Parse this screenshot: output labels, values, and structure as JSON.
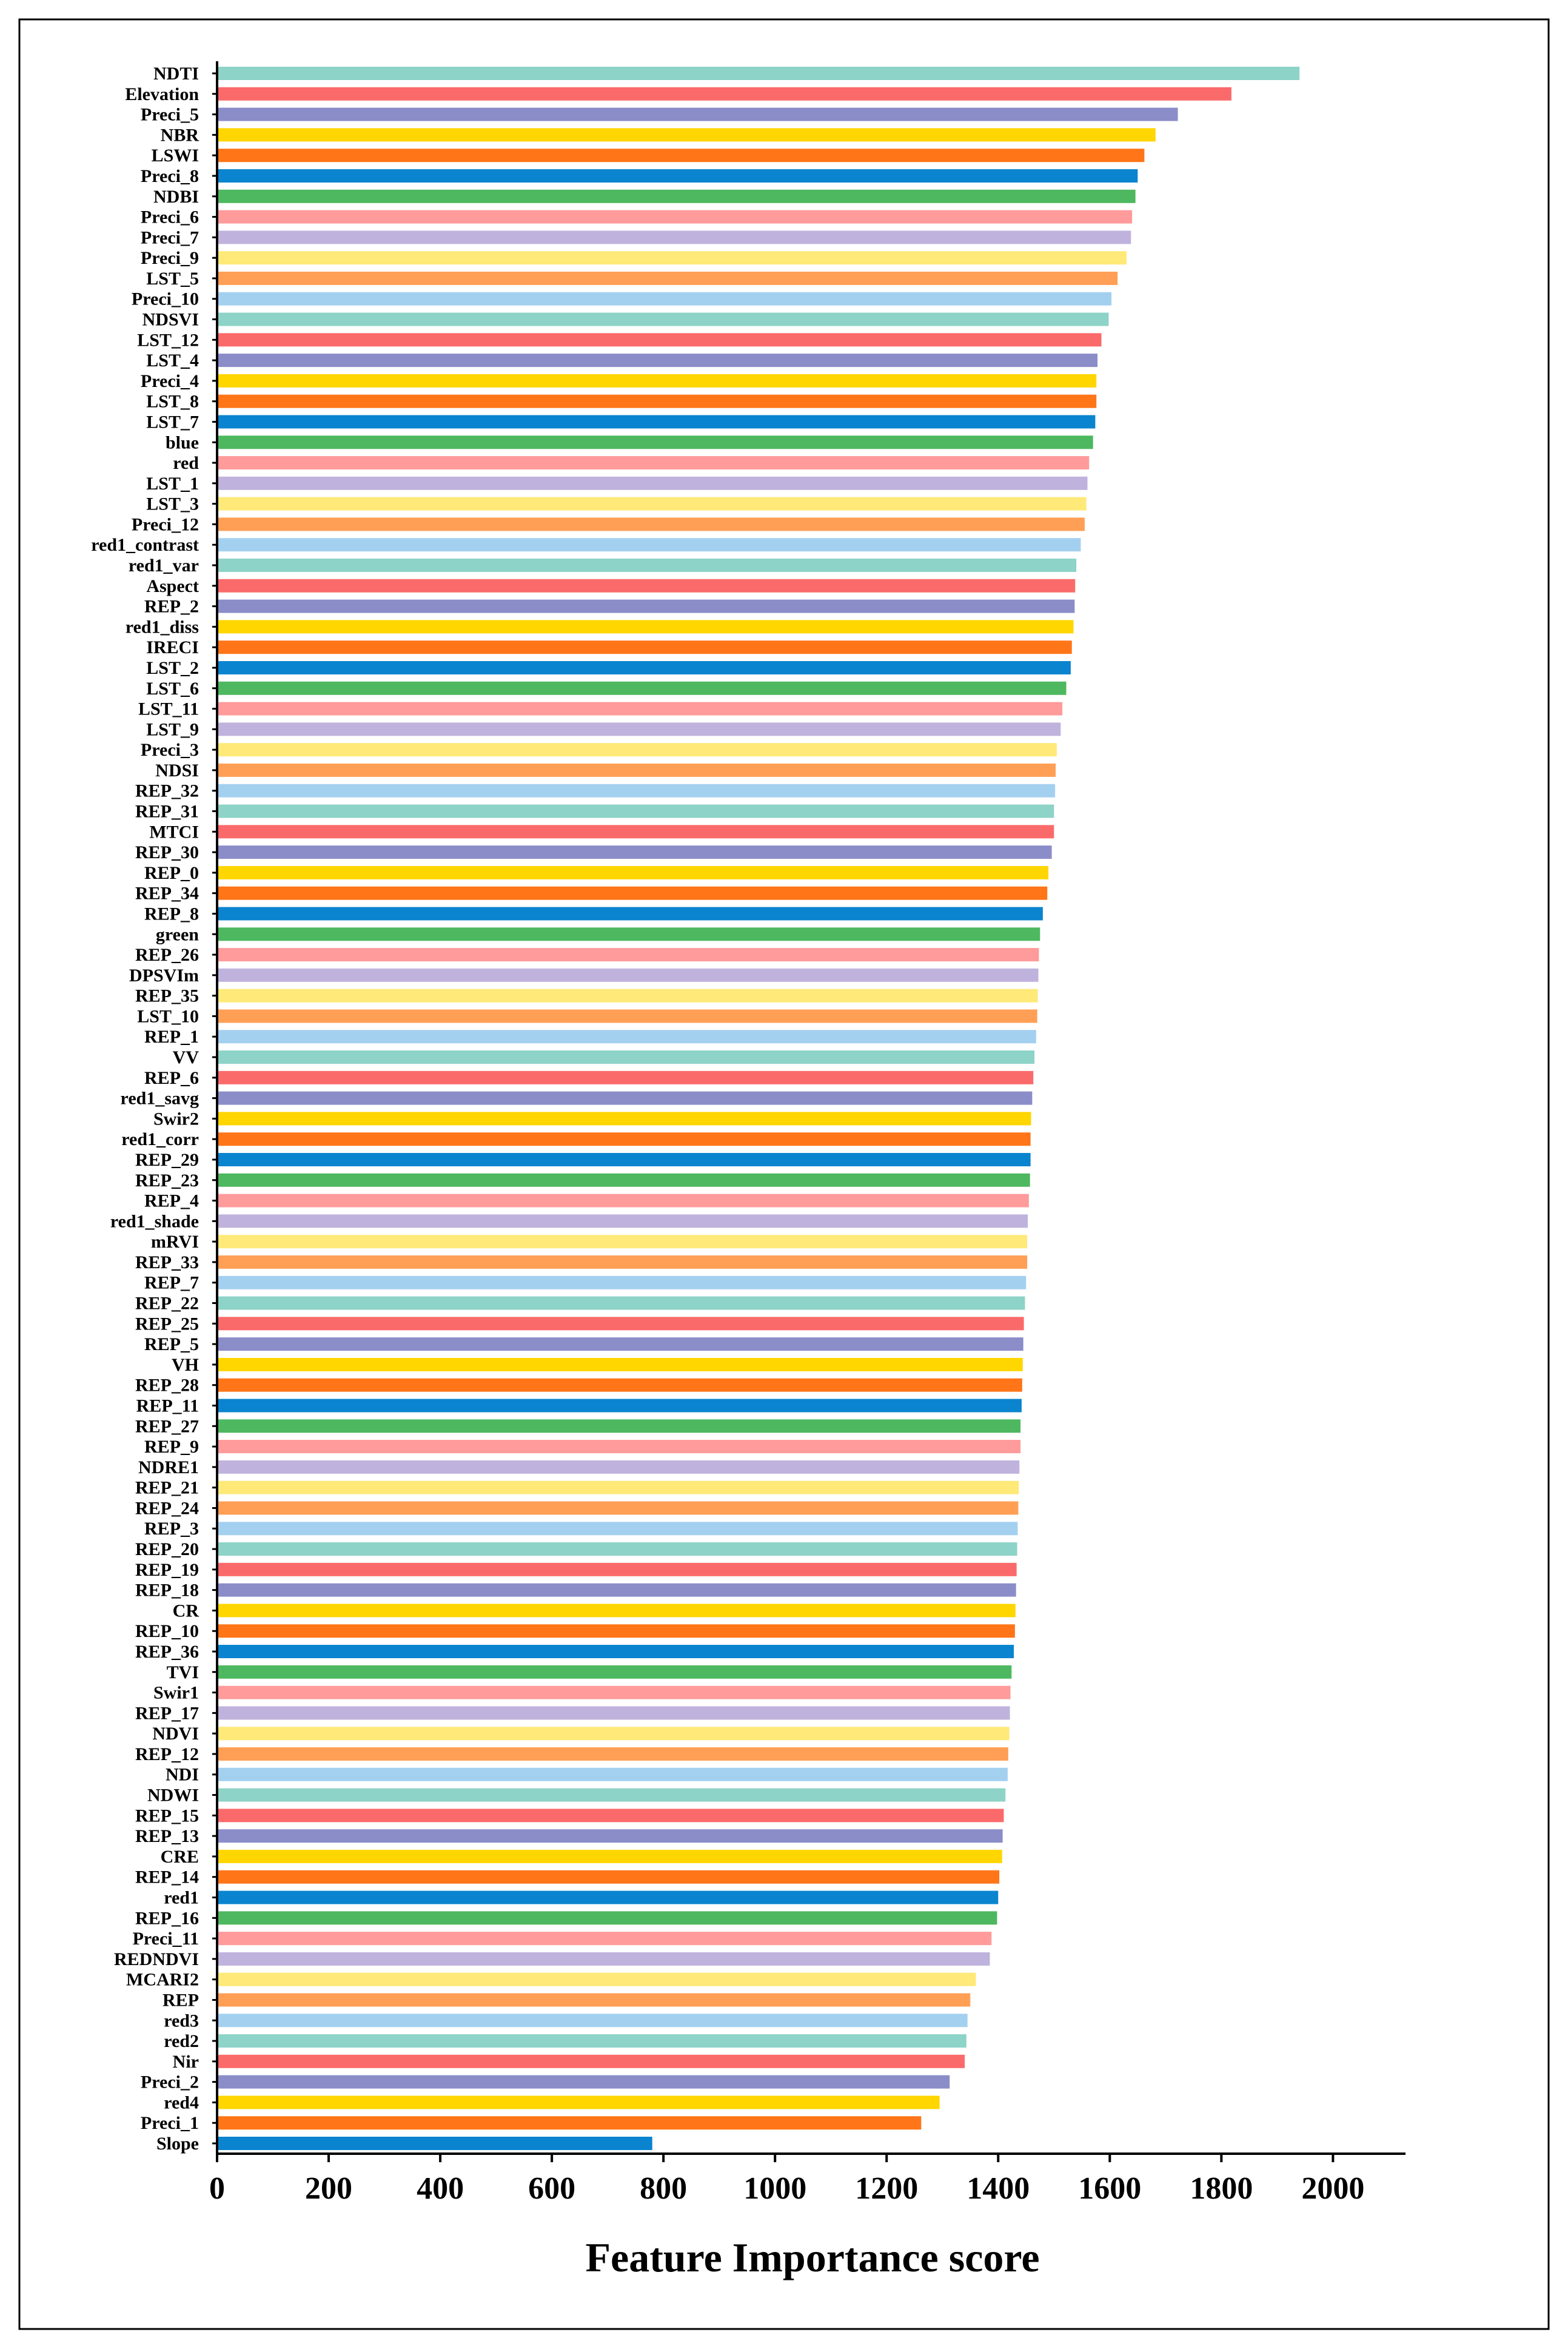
{
  "chart_data": {
    "type": "bar",
    "orientation": "horizontal",
    "xlabel": "Feature Importance score",
    "ylabel": "",
    "title": "",
    "xlim": [
      0,
      2130
    ],
    "xticks": [
      0,
      200,
      400,
      600,
      800,
      1000,
      1200,
      1400,
      1600,
      1800,
      2000
    ],
    "grid": false,
    "legend": "none",
    "palette": [
      "#8DD3C7",
      "#FB6A6A",
      "#8B8DC9",
      "#FFD600",
      "#FF7518",
      "#0A84CF",
      "#4DB85F",
      "#FF9B9B",
      "#BFB3DD",
      "#FFE978",
      "#FF9F55",
      "#A4D0F0"
    ],
    "categories": [
      "NDTI",
      "Elevation",
      "Preci_5",
      "NBR",
      "LSWI",
      "Preci_8",
      "NDBI",
      "Preci_6",
      "Preci_7",
      "Preci_9",
      "LST_5",
      "Preci_10",
      "NDSVI",
      "LST_12",
      "LST_4",
      "Preci_4",
      "LST_8",
      "LST_7",
      "blue",
      "red",
      "LST_1",
      "LST_3",
      "Preci_12",
      "red1_contrast",
      "red1_var",
      "Aspect",
      "REP_2",
      "red1_diss",
      "IRECI",
      "LST_2",
      "LST_6",
      "LST_11",
      "LST_9",
      "Preci_3",
      "NDSI",
      "REP_32",
      "REP_31",
      "MTCI",
      "REP_30",
      "REP_0",
      "REP_34",
      "REP_8",
      "green",
      "REP_26",
      "DPSVIm",
      "REP_35",
      "LST_10",
      "REP_1",
      "VV",
      "REP_6",
      "red1_savg",
      "Swir2",
      "red1_corr",
      "REP_29",
      "REP_23",
      "REP_4",
      "red1_shade",
      "mRVI",
      "REP_33",
      "REP_7",
      "REP_22",
      "REP_25",
      "REP_5",
      "VH",
      "REP_28",
      "REP_11",
      "REP_27",
      "REP_9",
      "NDRE1",
      "REP_21",
      "REP_24",
      "REP_3",
      "REP_20",
      "REP_19",
      "REP_18",
      "CR",
      "REP_10",
      "REP_36",
      "TVI",
      "Swir1",
      "REP_17",
      "NDVI",
      "REP_12",
      "NDI",
      "NDWI",
      "REP_15",
      "REP_13",
      "CRE",
      "REP_14",
      "red1",
      "REP_16",
      "Preci_11",
      "REDNDVI",
      "MCARI2",
      "REP",
      "red3",
      "red2",
      "Nir",
      "Preci_2",
      "red4",
      "Preci_1",
      "Slope"
    ],
    "values": [
      1940,
      1818,
      1722,
      1682,
      1662,
      1650,
      1646,
      1640,
      1638,
      1630,
      1614,
      1603,
      1598,
      1585,
      1578,
      1576,
      1576,
      1574,
      1570,
      1563,
      1560,
      1558,
      1555,
      1548,
      1540,
      1538,
      1537,
      1535,
      1532,
      1530,
      1522,
      1515,
      1512,
      1505,
      1503,
      1502,
      1500,
      1500,
      1496,
      1490,
      1488,
      1480,
      1475,
      1473,
      1472,
      1471,
      1470,
      1468,
      1465,
      1463,
      1461,
      1459,
      1458,
      1458,
      1457,
      1455,
      1453,
      1452,
      1452,
      1450,
      1448,
      1446,
      1445,
      1444,
      1443,
      1442,
      1440,
      1440,
      1438,
      1437,
      1436,
      1435,
      1434,
      1433,
      1432,
      1431,
      1430,
      1428,
      1424,
      1422,
      1421,
      1420,
      1418,
      1417,
      1413,
      1410,
      1408,
      1407,
      1402,
      1400,
      1398,
      1388,
      1385,
      1360,
      1350,
      1345,
      1343,
      1340,
      1313,
      1295,
      1262,
      780
    ]
  }
}
